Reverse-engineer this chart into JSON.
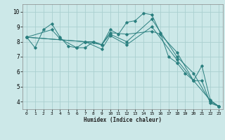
{
  "xlabel": "Humidex (Indice chaleur)",
  "bg_color": "#cce8e8",
  "grid_color": "#aad0d0",
  "line_color": "#2a7f7f",
  "xlim": [
    -0.5,
    23.5
  ],
  "ylim": [
    3.5,
    10.5
  ],
  "xticks": [
    0,
    1,
    2,
    3,
    4,
    5,
    6,
    7,
    8,
    9,
    10,
    11,
    12,
    13,
    14,
    15,
    16,
    17,
    18,
    19,
    20,
    21,
    22,
    23
  ],
  "yticks": [
    4,
    5,
    6,
    7,
    8,
    9,
    10
  ],
  "series": [
    {
      "x": [
        0,
        1,
        2,
        3,
        4,
        5,
        6,
        7,
        8,
        9,
        10,
        11,
        12,
        13,
        14,
        15,
        16,
        17,
        18,
        19,
        20,
        21,
        22,
        23
      ],
      "y": [
        8.3,
        7.6,
        8.8,
        9.2,
        8.3,
        7.7,
        7.6,
        8.0,
        8.0,
        7.8,
        8.8,
        8.5,
        9.3,
        9.4,
        9.9,
        9.8,
        8.6,
        7.0,
        6.6,
        5.9,
        5.4,
        6.4,
        4.1,
        3.7
      ]
    },
    {
      "x": [
        0,
        3,
        4,
        6,
        7,
        8,
        9,
        10,
        12,
        15,
        16,
        18,
        20,
        21,
        22,
        23
      ],
      "y": [
        8.3,
        8.8,
        8.2,
        7.6,
        7.6,
        8.0,
        7.8,
        8.6,
        8.5,
        8.7,
        8.5,
        7.3,
        5.4,
        5.4,
        3.9,
        3.7
      ]
    },
    {
      "x": [
        0,
        7,
        9,
        10,
        12,
        15,
        18,
        20,
        22,
        23
      ],
      "y": [
        8.3,
        8.0,
        7.8,
        8.5,
        8.0,
        9.5,
        7.0,
        5.9,
        4.0,
        3.7
      ]
    },
    {
      "x": [
        0,
        7,
        9,
        10,
        12,
        15,
        18,
        20,
        22,
        23
      ],
      "y": [
        8.3,
        8.0,
        7.5,
        8.4,
        7.8,
        9.0,
        6.8,
        5.4,
        4.1,
        3.7
      ]
    }
  ]
}
